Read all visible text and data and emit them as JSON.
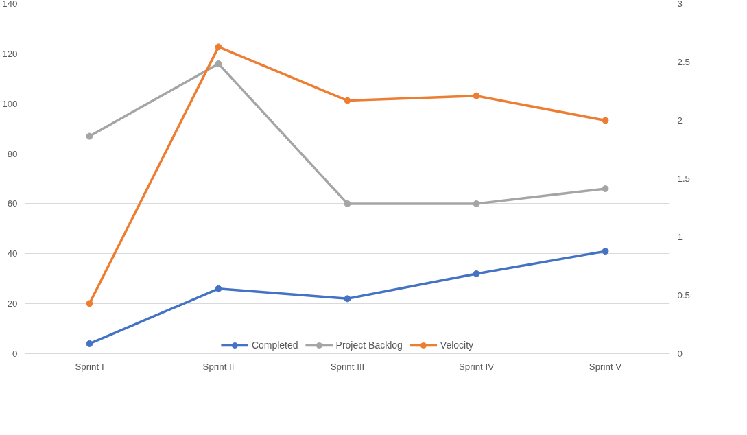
{
  "chart_data": {
    "type": "line",
    "categories": [
      "Sprint I",
      "Sprint II",
      "Sprint III",
      "Sprint IV",
      "Sprint V"
    ],
    "series": [
      {
        "name": "Completed",
        "color": "#4472c4",
        "values": [
          4,
          26,
          22,
          32,
          41
        ]
      },
      {
        "name": "Project Backlog",
        "color": "#a5a5a5",
        "values": [
          87,
          116,
          60,
          60,
          66
        ]
      },
      {
        "name": "Velocity",
        "color": "#ed7d31",
        "values": [
          0.43,
          2.63,
          2.17,
          2.21,
          2.0
        ],
        "axis": "y2"
      }
    ],
    "ylim": [
      0,
      140
    ],
    "yticks": [
      0,
      20,
      40,
      60,
      80,
      100,
      120,
      140
    ],
    "y2lim": [
      0,
      3
    ],
    "y2ticks": [
      0,
      {
        "value": 0.5,
        "label": "0.5"
      },
      1,
      {
        "value": 1.5,
        "label": "1.5"
      },
      2,
      {
        "value": 2.5,
        "label": "2.5"
      },
      3
    ],
    "grid": "y",
    "legend": "bottom",
    "marker": "circle",
    "line_style": "solid"
  }
}
